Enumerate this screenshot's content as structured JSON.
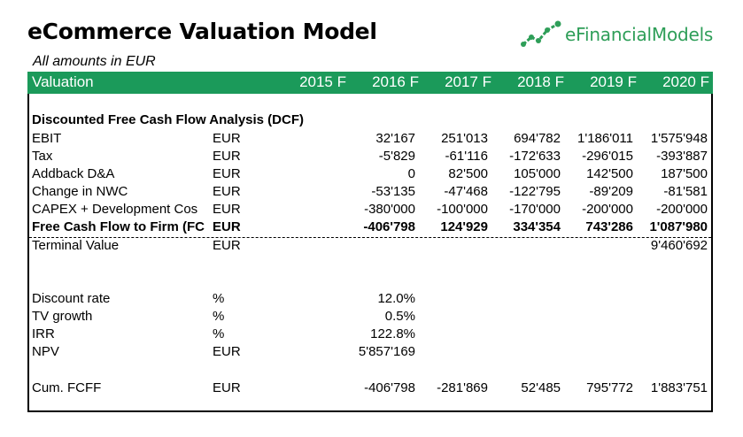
{
  "title": "eCommerce Valuation Model",
  "subtitle": "All amounts in EUR",
  "logo": {
    "prefix": "e",
    "name": "FinancialModels",
    "icon": "rising-chart-icon",
    "color": "#2e9e58"
  },
  "header": {
    "label": "Valuation",
    "years": [
      "2015 F",
      "2016 F",
      "2017 F",
      "2018 F",
      "2019 F",
      "2020 F"
    ],
    "color": "#1b9a5a"
  },
  "section_title": "Discounted Free Cash Flow Analysis (DCF)",
  "rows": [
    {
      "label": "EBIT",
      "unit": "EUR",
      "values": [
        "",
        "32'167",
        "251'013",
        "694'782",
        "1'186'011",
        "1'575'948"
      ]
    },
    {
      "label": "Tax",
      "unit": "EUR",
      "values": [
        "",
        "-5'829",
        "-61'116",
        "-172'633",
        "-296'015",
        "-393'887"
      ]
    },
    {
      "label": "Addback D&A",
      "unit": "EUR",
      "values": [
        "",
        "0",
        "82'500",
        "105'000",
        "142'500",
        "187'500"
      ]
    },
    {
      "label": "Change in NWC",
      "unit": "EUR",
      "values": [
        "",
        "-53'135",
        "-47'468",
        "-122'795",
        "-89'209",
        "-81'581"
      ]
    },
    {
      "label": "CAPEX + Development Cos",
      "unit": "EUR",
      "values": [
        "",
        "-380'000",
        "-100'000",
        "-170'000",
        "-200'000",
        "-200'000"
      ]
    },
    {
      "label": "Free Cash Flow to Firm (FC",
      "unit": "EUR",
      "values": [
        "",
        "-406'798",
        "124'929",
        "334'354",
        "743'286",
        "1'087'980"
      ]
    },
    {
      "label": "Terminal Value",
      "unit": "EUR",
      "values": [
        "",
        "",
        "",
        "",
        "",
        "9'460'692"
      ]
    }
  ],
  "metrics": [
    {
      "label": "Discount rate",
      "unit": "%",
      "value": "12.0%"
    },
    {
      "label": "TV growth",
      "unit": "%",
      "value": "0.5%"
    },
    {
      "label": "IRR",
      "unit": "%",
      "value": "122.8%"
    },
    {
      "label": "NPV",
      "unit": "EUR",
      "value": "5'857'169"
    }
  ],
  "cum_row": {
    "label": "Cum. FCFF",
    "unit": "EUR",
    "values": [
      "",
      "-406'798",
      "-281'869",
      "52'485",
      "795'772",
      "1'883'751"
    ]
  }
}
